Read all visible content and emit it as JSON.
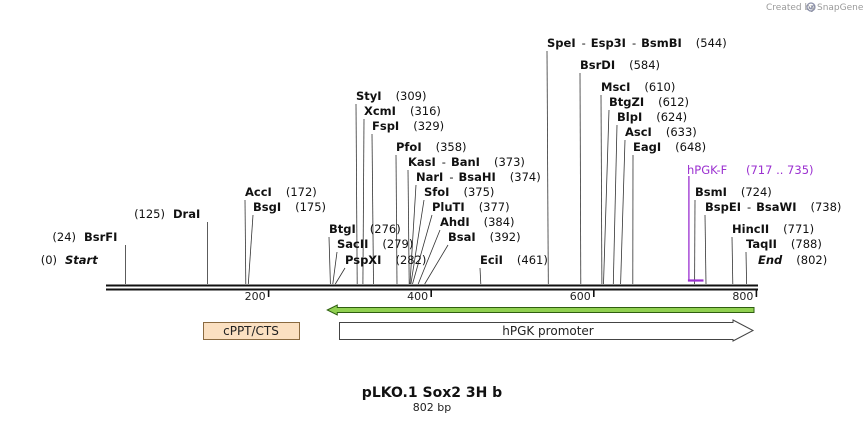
{
  "credit": {
    "text": "Created by",
    "brand": "SnapGene",
    "brand_color": "#8a8fa8"
  },
  "map": {
    "title": "pLKO.1 Sox2 3H b",
    "length_label": "802 bp",
    "total_bp": 802,
    "ticks": [
      {
        "bp": 200,
        "label": "200"
      },
      {
        "bp": 400,
        "label": "400"
      },
      {
        "bp": 600,
        "label": "600"
      },
      {
        "bp": 800,
        "label": "800"
      }
    ],
    "sites": [
      {
        "name": "SpeI",
        "extra": [
          "Esp3I",
          "BsmBI"
        ],
        "pos_label": "(544)",
        "bp": 544
      },
      {
        "name": "BsrDI",
        "extra": [],
        "pos_label": "(584)",
        "bp": 584
      },
      {
        "name": "MscI",
        "extra": [],
        "pos_label": "(610)",
        "bp": 610
      },
      {
        "name": "BtgZI",
        "extra": [],
        "pos_label": "(612)",
        "bp": 612
      },
      {
        "name": "BlpI",
        "extra": [],
        "pos_label": "(624)",
        "bp": 624
      },
      {
        "name": "AscI",
        "extra": [],
        "pos_label": "(633)",
        "bp": 633
      },
      {
        "name": "EagI",
        "extra": [],
        "pos_label": "(648)",
        "bp": 648
      },
      {
        "name": "StyI",
        "extra": [],
        "pos_label": "(309)",
        "bp": 309
      },
      {
        "name": "XcmI",
        "extra": [],
        "pos_label": "(316)",
        "bp": 316
      },
      {
        "name": "FspI",
        "extra": [],
        "pos_label": "(329)",
        "bp": 329
      },
      {
        "name": "PfoI",
        "extra": [],
        "pos_label": "(358)",
        "bp": 358
      },
      {
        "name": "KasI",
        "extra": [
          "BanI"
        ],
        "pos_label": "(373)",
        "bp": 373
      },
      {
        "name": "NarI",
        "extra": [
          "BsaHI"
        ],
        "pos_label": "(374)",
        "bp": 374
      },
      {
        "name": "SfoI",
        "extra": [],
        "pos_label": "(375)",
        "bp": 375
      },
      {
        "name": "PluTI",
        "extra": [],
        "pos_label": "(377)",
        "bp": 377
      },
      {
        "name": "AhdI",
        "extra": [],
        "pos_label": "(384)",
        "bp": 384
      },
      {
        "name": "BsaI",
        "extra": [],
        "pos_label": "(392)",
        "bp": 392
      },
      {
        "name": "AccI",
        "extra": [],
        "pos_label": "(172)",
        "bp": 172
      },
      {
        "name": "BsgI",
        "extra": [],
        "pos_label": "(175)",
        "bp": 175
      },
      {
        "name": "DraI",
        "extra": [],
        "pos_label": "(125)",
        "bp": 125
      },
      {
        "name": "BsrFI",
        "extra": [],
        "pos_label": "(24)",
        "bp": 24
      },
      {
        "name": "Start",
        "extra": [],
        "pos_label": "(0)",
        "bp": 0
      },
      {
        "name": "BtgI",
        "extra": [],
        "pos_label": "(276)",
        "bp": 276
      },
      {
        "name": "SacII",
        "extra": [],
        "pos_label": "(279)",
        "bp": 279
      },
      {
        "name": "PspXI",
        "extra": [],
        "pos_label": "(282)",
        "bp": 282
      },
      {
        "name": "EciI",
        "extra": [],
        "pos_label": "(461)",
        "bp": 461
      },
      {
        "name": "BsmI",
        "extra": [],
        "pos_label": "(724)",
        "bp": 724
      },
      {
        "name": "BspEI",
        "extra": [
          "BsaWI"
        ],
        "pos_label": "(738)",
        "bp": 738
      },
      {
        "name": "HincII",
        "extra": [],
        "pos_label": "(771)",
        "bp": 771
      },
      {
        "name": "TaqII",
        "extra": [],
        "pos_label": "(788)",
        "bp": 788
      },
      {
        "name": "End",
        "extra": [],
        "pos_label": "(802)",
        "bp": 802
      }
    ],
    "primer": {
      "name": "hPGK-F",
      "range_label": "(717 .. 735)",
      "start_bp": 717,
      "end_bp": 735,
      "color": "#9b30d0"
    },
    "orf": {
      "start_bp": 282,
      "end_bp": 802,
      "direction": "reverse",
      "color": "#90d050",
      "stroke": "#2e5e10"
    },
    "features": [
      {
        "label": "cPPT/CTS",
        "start_bp": 119,
        "end_bp": 237,
        "type": "box",
        "fill": "#fbe0c1",
        "stroke": "#8a6a40"
      },
      {
        "label": "hPGK promoter",
        "start_bp": 290,
        "end_bp": 802,
        "type": "arrow",
        "direction": "forward",
        "fill": "#ffffff",
        "stroke": "#444444"
      }
    ]
  }
}
